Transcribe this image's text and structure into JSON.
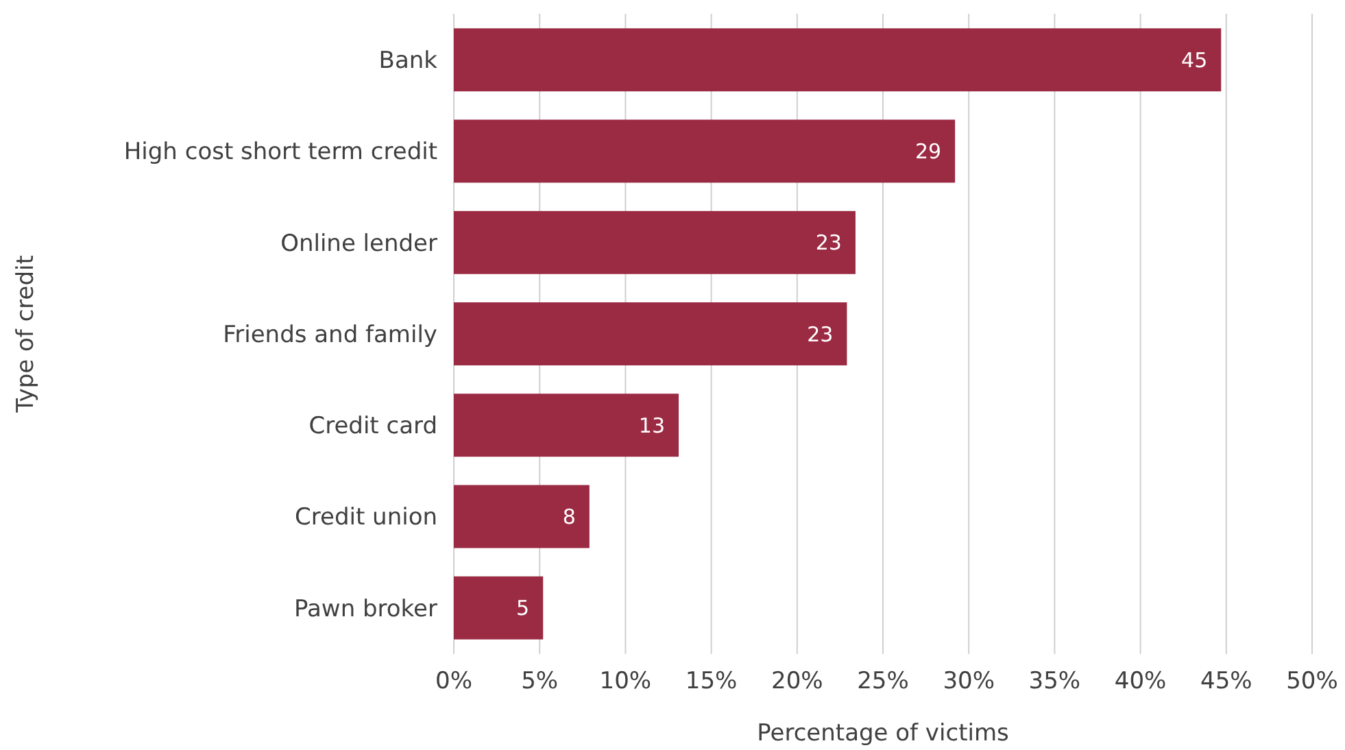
{
  "chart_data": {
    "type": "bar",
    "orientation": "horizontal",
    "xlabel": "Percentage of victims",
    "ylabel": "Type of credit",
    "categories": [
      "Bank",
      "High cost short term credit",
      "Online lender",
      "Friends and family",
      "Credit card",
      "Credit union",
      "Pawn broker"
    ],
    "values": [
      44.7,
      29.2,
      23.4,
      22.9,
      13.1,
      7.9,
      5.2
    ],
    "value_labels": [
      "45",
      "29",
      "23",
      "23",
      "13",
      "8",
      "5"
    ],
    "color": "#9b2a43",
    "xlim": [
      0,
      50
    ],
    "xticks": [
      {
        "value": 0,
        "label": "0%"
      },
      {
        "value": 5,
        "label": "5%"
      },
      {
        "value": 10,
        "label": "10%"
      },
      {
        "value": 15,
        "label": "15%"
      },
      {
        "value": 20,
        "label": "20%"
      },
      {
        "value": 25,
        "label": "25%"
      },
      {
        "value": 30,
        "label": "30%"
      },
      {
        "value": 35,
        "label": "35%"
      },
      {
        "value": 40,
        "label": "40%"
      },
      {
        "value": 45,
        "label": "45%"
      },
      {
        "value": 50,
        "label": "50%"
      }
    ],
    "grid": "x"
  }
}
